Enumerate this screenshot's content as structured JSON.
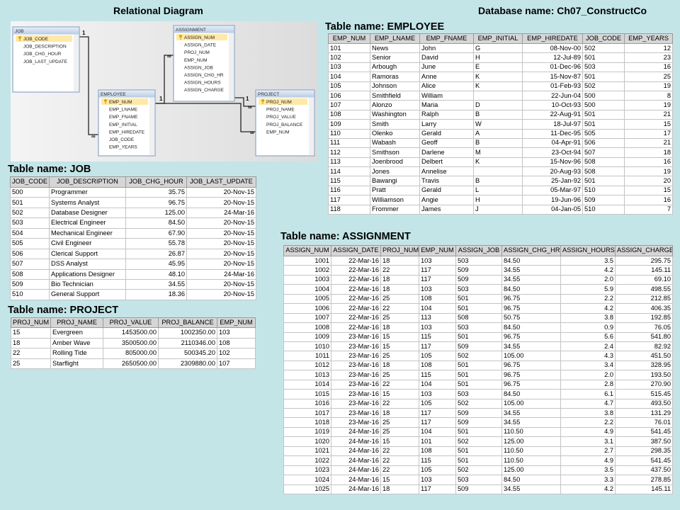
{
  "header": {
    "title": "Relational Diagram",
    "database": "Database name: Ch07_ConstructCo"
  },
  "diagram": {
    "entities": [
      {
        "name": "JOB",
        "fields": [
          "JOB_CODE",
          "JOB_DESCRIPTION",
          "JOB_CHG_HOUR",
          "JOB_LAST_UPDATE"
        ]
      },
      {
        "name": "ASSIGNMENT",
        "fields": [
          "ASSIGN_NUM",
          "ASSIGN_DATE",
          "PROJ_NUM",
          "EMP_NUM",
          "ASSIGN_JOB",
          "ASSIGN_CHG_HR",
          "ASSIGN_HOURS",
          "ASSIGN_CHARGE"
        ]
      },
      {
        "name": "EMPLOYEE",
        "fields": [
          "EMP_NUM",
          "EMP_LNAME",
          "EMP_FNAME",
          "EMP_INITIAL",
          "EMP_HIREDATE",
          "JOB_CODE",
          "EMP_YEARS"
        ]
      },
      {
        "name": "PROJECT",
        "fields": [
          "PROJ_NUM",
          "PROJ_NAME",
          "PROJ_VALUE",
          "PROJ_BALANCE",
          "EMP_NUM"
        ]
      }
    ],
    "symbols": [
      "1",
      "∞",
      "1",
      "∞",
      "1",
      "∞",
      "∞"
    ]
  },
  "employee": {
    "title": "Table name: EMPLOYEE",
    "columns": [
      "EMP_NUM",
      "EMP_LNAME",
      "EMP_FNAME",
      "EMP_INITIAL",
      "EMP_HIREDATE",
      "JOB_CODE",
      "EMP_YEARS"
    ],
    "rows": [
      [
        "101",
        "News",
        "John",
        "G",
        "08-Nov-00",
        "502",
        "12"
      ],
      [
        "102",
        "Senior",
        "David",
        "H",
        "12-Jul-89",
        "501",
        "23"
      ],
      [
        "103",
        "Arbough",
        "June",
        "E",
        "01-Dec-96",
        "503",
        "16"
      ],
      [
        "104",
        "Ramoras",
        "Anne",
        "K",
        "15-Nov-87",
        "501",
        "25"
      ],
      [
        "105",
        "Johnson",
        "Alice",
        "K",
        "01-Feb-93",
        "502",
        "19"
      ],
      [
        "106",
        "Smithfield",
        "William",
        null,
        "22-Jun-04",
        "500",
        "8"
      ],
      [
        "107",
        "Alonzo",
        "Maria",
        "D",
        "10-Oct-93",
        "500",
        "19"
      ],
      [
        "108",
        "Washington",
        "Ralph",
        "B",
        "22-Aug-91",
        "501",
        "21"
      ],
      [
        "109",
        "Smith",
        "Larry",
        "W",
        "18-Jul-97",
        "501",
        "15"
      ],
      [
        "110",
        "Olenko",
        "Gerald",
        "A",
        "11-Dec-95",
        "505",
        "17"
      ],
      [
        "111",
        "Wabash",
        "Geoff",
        "B",
        "04-Apr-91",
        "506",
        "21"
      ],
      [
        "112",
        "Smithson",
        "Darlene",
        "M",
        "23-Oct-94",
        "507",
        "18"
      ],
      [
        "113",
        "Joenbrood",
        "Delbert",
        "K",
        "15-Nov-96",
        "508",
        "16"
      ],
      [
        "114",
        "Jones",
        "Annelise",
        null,
        "20-Aug-93",
        "508",
        "19"
      ],
      [
        "115",
        "Bawangi",
        "Travis",
        "B",
        "25-Jan-92",
        "501",
        "20"
      ],
      [
        "116",
        "Pratt",
        "Gerald",
        "L",
        "05-Mar-97",
        "510",
        "15"
      ],
      [
        "117",
        "Williamson",
        "Angie",
        "H",
        "19-Jun-96",
        "509",
        "16"
      ],
      [
        "118",
        "Frommer",
        "James",
        "J",
        "04-Jan-05",
        "510",
        "7"
      ]
    ]
  },
  "job": {
    "title": "Table name: JOB",
    "columns": [
      "JOB_CODE",
      "JOB_DESCRIPTION",
      "JOB_CHG_HOUR",
      "JOB_LAST_UPDATE"
    ],
    "rows": [
      [
        "500",
        "Programmer",
        "35.75",
        "20-Nov-15"
      ],
      [
        "501",
        "Systems Analyst",
        "96.75",
        "20-Nov-15"
      ],
      [
        "502",
        "Database Designer",
        "125.00",
        "24-Mar-16"
      ],
      [
        "503",
        "Electrical Engineer",
        "84.50",
        "20-Nov-15"
      ],
      [
        "504",
        "Mechanical Engineer",
        "67.90",
        "20-Nov-15"
      ],
      [
        "505",
        "Civil Engineer",
        "55.78",
        "20-Nov-15"
      ],
      [
        "506",
        "Clerical Support",
        "26.87",
        "20-Nov-15"
      ],
      [
        "507",
        "DSS Analyst",
        "45.95",
        "20-Nov-15"
      ],
      [
        "508",
        "Applications Designer",
        "48.10",
        "24-Mar-16"
      ],
      [
        "509",
        "Bio Technician",
        "34.55",
        "20-Nov-15"
      ],
      [
        "510",
        "General Support",
        "18.36",
        "20-Nov-15"
      ]
    ]
  },
  "project": {
    "title": "Table name: PROJECT",
    "columns": [
      "PROJ_NUM",
      "PROJ_NAME",
      "PROJ_VALUE",
      "PROJ_BALANCE",
      "EMP_NUM"
    ],
    "rows": [
      [
        "15",
        "Evergreen",
        "1453500.00",
        "1002350.00",
        "103"
      ],
      [
        "18",
        "Amber Wave",
        "3500500.00",
        "2110346.00",
        "108"
      ],
      [
        "22",
        "Rolling Tide",
        "805000.00",
        "500345.20",
        "102"
      ],
      [
        "25",
        "Starflight",
        "2650500.00",
        "2309880.00",
        "107"
      ]
    ]
  },
  "assignment": {
    "title": "Table name: ASSIGNMENT",
    "columns": [
      "ASSIGN_NUM",
      "ASSIGN_DATE",
      "PROJ_NUM",
      "EMP_NUM",
      "ASSIGN_JOB",
      "ASSIGN_CHG_HR",
      "ASSIGN_HOURS",
      "ASSIGN_CHARGE"
    ],
    "rows": [
      [
        "1001",
        "22-Mar-16",
        "18",
        "103",
        "503",
        "84.50",
        "3.5",
        "295.75"
      ],
      [
        "1002",
        "22-Mar-16",
        "22",
        "117",
        "509",
        "34.55",
        "4.2",
        "145.11"
      ],
      [
        "1003",
        "22-Mar-16",
        "18",
        "117",
        "509",
        "34.55",
        "2.0",
        "69.10"
      ],
      [
        "1004",
        "22-Mar-16",
        "18",
        "103",
        "503",
        "84.50",
        "5.9",
        "498.55"
      ],
      [
        "1005",
        "22-Mar-16",
        "25",
        "108",
        "501",
        "96.75",
        "2.2",
        "212.85"
      ],
      [
        "1006",
        "22-Mar-16",
        "22",
        "104",
        "501",
        "96.75",
        "4.2",
        "406.35"
      ],
      [
        "1007",
        "22-Mar-16",
        "25",
        "113",
        "508",
        "50.75",
        "3.8",
        "192.85"
      ],
      [
        "1008",
        "22-Mar-16",
        "18",
        "103",
        "503",
        "84.50",
        "0.9",
        "76.05"
      ],
      [
        "1009",
        "23-Mar-16",
        "15",
        "115",
        "501",
        "96.75",
        "5.6",
        "541.80"
      ],
      [
        "1010",
        "23-Mar-16",
        "15",
        "117",
        "509",
        "34.55",
        "2.4",
        "82.92"
      ],
      [
        "1011",
        "23-Mar-16",
        "25",
        "105",
        "502",
        "105.00",
        "4.3",
        "451.50"
      ],
      [
        "1012",
        "23-Mar-16",
        "18",
        "108",
        "501",
        "96.75",
        "3.4",
        "328.95"
      ],
      [
        "1013",
        "23-Mar-16",
        "25",
        "115",
        "501",
        "96.75",
        "2.0",
        "193.50"
      ],
      [
        "1014",
        "23-Mar-16",
        "22",
        "104",
        "501",
        "96.75",
        "2.8",
        "270.90"
      ],
      [
        "1015",
        "23-Mar-16",
        "15",
        "103",
        "503",
        "84.50",
        "6.1",
        "515.45"
      ],
      [
        "1016",
        "23-Mar-16",
        "22",
        "105",
        "502",
        "105.00",
        "4.7",
        "493.50"
      ],
      [
        "1017",
        "23-Mar-16",
        "18",
        "117",
        "509",
        "34.55",
        "3.8",
        "131.29"
      ],
      [
        "1018",
        "23-Mar-16",
        "25",
        "117",
        "509",
        "34.55",
        "2.2",
        "76.01"
      ],
      [
        "1019",
        "24-Mar-16",
        "25",
        "104",
        "501",
        "110.50",
        "4.9",
        "541.45"
      ],
      [
        "1020",
        "24-Mar-16",
        "15",
        "101",
        "502",
        "125.00",
        "3.1",
        "387.50"
      ],
      [
        "1021",
        "24-Mar-16",
        "22",
        "108",
        "501",
        "110.50",
        "2.7",
        "298.35"
      ],
      [
        "1022",
        "24-Mar-16",
        "22",
        "115",
        "501",
        "110.50",
        "4.9",
        "541.45"
      ],
      [
        "1023",
        "24-Mar-16",
        "22",
        "105",
        "502",
        "125.00",
        "3.5",
        "437.50"
      ],
      [
        "1024",
        "24-Mar-16",
        "15",
        "103",
        "503",
        "84.50",
        "3.3",
        "278.85"
      ],
      [
        "1025",
        "24-Mar-16",
        "18",
        "117",
        "509",
        "34.55",
        "4.2",
        "145.11"
      ]
    ]
  }
}
